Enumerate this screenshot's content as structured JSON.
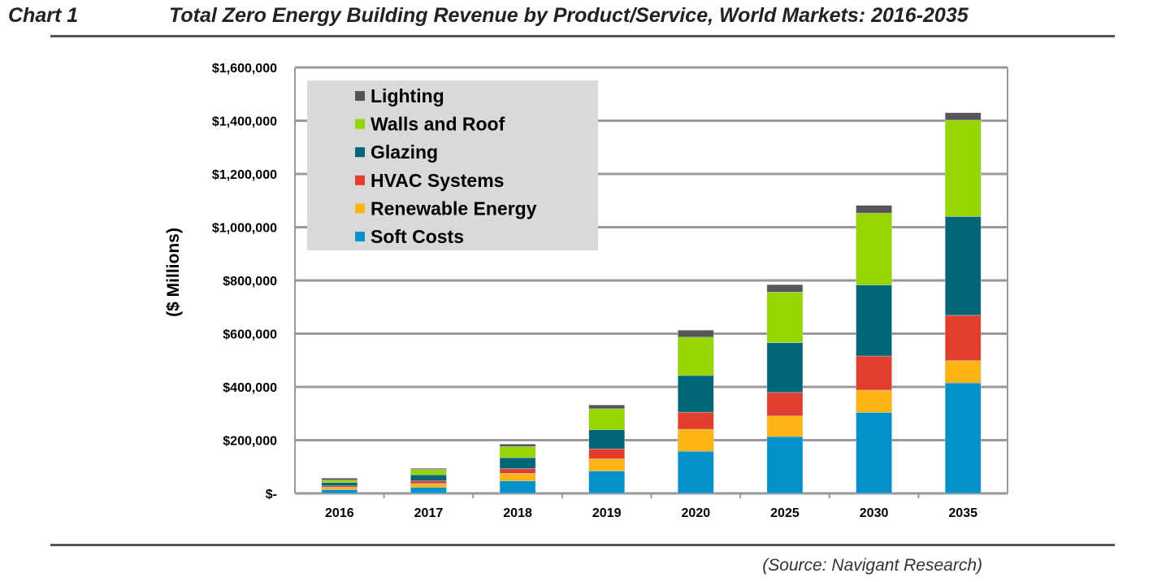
{
  "header": {
    "chart_label": "Chart 1",
    "title": "Total Zero Energy Building Revenue by Product/Service, World Markets: 2016-2035"
  },
  "source": "(Source: Navigant Research)",
  "chart_data": {
    "type": "bar",
    "stacked": true,
    "title": "Total Zero Energy Building Revenue by Product/Service, World Markets: 2016-2035",
    "xlabel": "",
    "ylabel": "($ Millions)",
    "ylim": [
      0,
      1600000
    ],
    "yticks": [
      0,
      200000,
      400000,
      600000,
      800000,
      1000000,
      1200000,
      1400000,
      1600000
    ],
    "ytick_labels": [
      "$-",
      "$200,000",
      "$400,000",
      "$600,000",
      "$800,000",
      "$1,000,000",
      "$1,200,000",
      "$1,400,000",
      "$1,600,000"
    ],
    "grid": true,
    "legend_position": "top-left",
    "categories": [
      "2016",
      "2017",
      "2018",
      "2019",
      "2020",
      "2025",
      "2030",
      "2035"
    ],
    "series": [
      {
        "name": "Soft Costs",
        "color": "#0092c8",
        "values": [
          14000,
          23000,
          47000,
          84000,
          158000,
          213000,
          304000,
          415000
        ]
      },
      {
        "name": "Renewable Energy",
        "color": "#fdb515",
        "values": [
          9000,
          14000,
          28000,
          46000,
          83000,
          78000,
          84000,
          84000
        ]
      },
      {
        "name": "HVAC Systems",
        "color": "#e33d2e",
        "values": [
          5000,
          10000,
          18000,
          37000,
          64000,
          88000,
          128000,
          170000
        ]
      },
      {
        "name": "Glazing",
        "color": "#006577",
        "values": [
          13000,
          23000,
          41000,
          72000,
          138000,
          187000,
          267000,
          371000
        ]
      },
      {
        "name": "Walls and Roof",
        "color": "#95d600",
        "values": [
          9000,
          20000,
          42000,
          79000,
          144000,
          190000,
          270000,
          362000
        ]
      },
      {
        "name": "Lighting",
        "color": "#555659",
        "values": [
          7000,
          4000,
          9000,
          14000,
          26000,
          28000,
          29000,
          28000
        ]
      }
    ]
  }
}
